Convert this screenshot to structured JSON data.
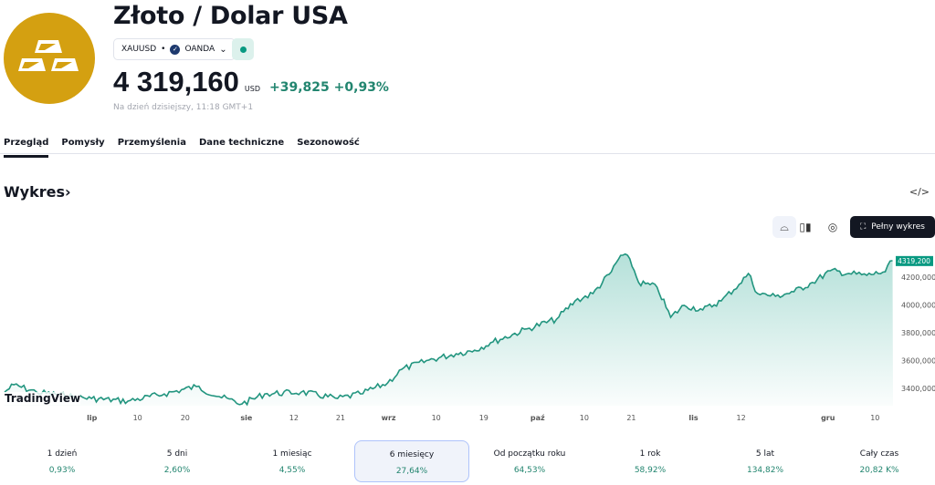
{
  "header": {
    "title": "Złoto / Dolar USA",
    "symbol": "XAUUSD",
    "exchange": "OANDA",
    "price": "4 319,160",
    "currency": "USD",
    "change": "+39,825",
    "change_pct": "+0,93%",
    "as_of": "Na dzień dzisiejszy, 11:18 GMT+1",
    "logo_icon": "gold-bars-icon"
  },
  "tabs": [
    "Przegląd",
    "Pomysły",
    "Przemyślenia",
    "Dane techniczne",
    "Sezonowość"
  ],
  "section": {
    "title": "Wykres",
    "chevron": "›",
    "embed": "</>",
    "full_chart": "Pełny wykres"
  },
  "colors": {
    "accent": "#089981",
    "logo": "#d4a011"
  },
  "watermark": "TradingView",
  "chart_data": {
    "type": "area",
    "series_name": "XAUUSD",
    "last_value_label": "4319,200",
    "ylim": [
      3250,
      4450
    ],
    "y_ticks": [
      {
        "v": 4200,
        "l": "4200,000"
      },
      {
        "v": 4000,
        "l": "4000,000"
      },
      {
        "v": 3800,
        "l": "3800,000"
      },
      {
        "v": 3600,
        "l": "3600,000"
      },
      {
        "v": 3400,
        "l": "3400,000"
      }
    ],
    "x_ticks": [
      {
        "d": 18,
        "l": "lip"
      },
      {
        "d": 27.4,
        "l": "10"
      },
      {
        "d": 37.2,
        "l": "20"
      },
      {
        "d": 49.8,
        "l": "sie"
      },
      {
        "d": 59.6,
        "l": "12"
      },
      {
        "d": 69.2,
        "l": "21"
      },
      {
        "d": 79.1,
        "l": "wrz"
      },
      {
        "d": 88.9,
        "l": "10"
      },
      {
        "d": 98.7,
        "l": "19"
      },
      {
        "d": 109.8,
        "l": "paź"
      },
      {
        "d": 119.4,
        "l": "10"
      },
      {
        "d": 129.1,
        "l": "21"
      },
      {
        "d": 141.9,
        "l": "lis"
      },
      {
        "d": 151.7,
        "l": "12"
      },
      {
        "d": 169.6,
        "l": "gru"
      },
      {
        "d": 179.3,
        "l": "10"
      }
    ],
    "xlim": [
      0,
      183
    ],
    "points": [
      [
        0,
        3373
      ],
      [
        1.9,
        3426
      ],
      [
        6.6,
        3373
      ],
      [
        14.1,
        3341
      ],
      [
        17.9,
        3327
      ],
      [
        25.4,
        3308
      ],
      [
        32.9,
        3360
      ],
      [
        39.5,
        3413
      ],
      [
        44.2,
        3341
      ],
      [
        48.9,
        3288
      ],
      [
        53.6,
        3360
      ],
      [
        61.1,
        3373
      ],
      [
        68.6,
        3327
      ],
      [
        73.3,
        3360
      ],
      [
        78.9,
        3439
      ],
      [
        81.8,
        3537
      ],
      [
        87.4,
        3603
      ],
      [
        93,
        3649
      ],
      [
        96.8,
        3675
      ],
      [
        100.6,
        3734
      ],
      [
        108.1,
        3833
      ],
      [
        113.7,
        3898
      ],
      [
        117.5,
        4029
      ],
      [
        121.2,
        4082
      ],
      [
        125,
        4239
      ],
      [
        126.9,
        4357
      ],
      [
        128.8,
        4331
      ],
      [
        130.6,
        4161
      ],
      [
        134.4,
        4128
      ],
      [
        137.2,
        3911
      ],
      [
        140,
        3997
      ],
      [
        143.8,
        3964
      ],
      [
        147.6,
        4029
      ],
      [
        151.3,
        4148
      ],
      [
        153.2,
        4226
      ],
      [
        155.1,
        4082
      ],
      [
        158.8,
        4062
      ],
      [
        162.6,
        4095
      ],
      [
        166.4,
        4161
      ],
      [
        170.1,
        4246
      ],
      [
        173.9,
        4226
      ],
      [
        177.6,
        4213
      ],
      [
        181.4,
        4239
      ],
      [
        182.9,
        4319
      ]
    ]
  },
  "periods": [
    {
      "label": "1 dzień",
      "value": "0,93%"
    },
    {
      "label": "5 dni",
      "value": "2,60%"
    },
    {
      "label": "1 miesiąc",
      "value": "4,55%"
    },
    {
      "label": "6 miesięcy",
      "value": "27,64%",
      "selected": true
    },
    {
      "label": "Od początku roku",
      "value": "64,53%"
    },
    {
      "label": "1 rok",
      "value": "58,92%"
    },
    {
      "label": "5 lat",
      "value": "134,82%"
    },
    {
      "label": "Cały czas",
      "value": "20,82 K%"
    }
  ]
}
